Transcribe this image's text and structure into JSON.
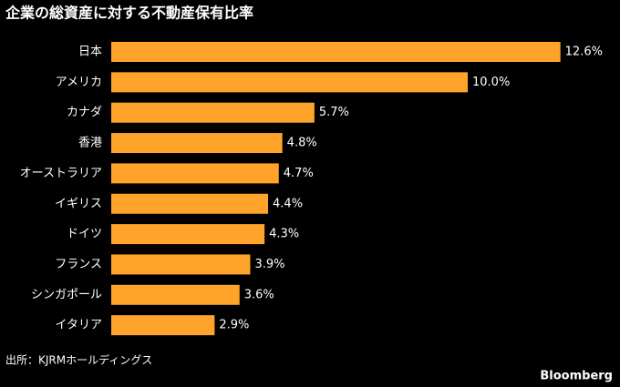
{
  "chart_data": {
    "type": "hbar",
    "title": "企業の総資産に対する不動産保有比率",
    "categories": [
      "日本",
      "アメリカ",
      "カナダ",
      "香港",
      "オーストラリア",
      "イギリス",
      "ドイツ",
      "フランス",
      "シンガポール",
      "イタリア"
    ],
    "values": [
      12.6,
      10.0,
      5.7,
      4.8,
      4.7,
      4.4,
      4.3,
      3.9,
      3.6,
      2.9
    ],
    "value_labels": [
      "12.6%",
      "10.0%",
      "5.7%",
      "4.8%",
      "4.7%",
      "4.4%",
      "4.3%",
      "3.9%",
      "3.6%",
      "2.9%"
    ],
    "color": "#ffa32b",
    "source": "出所：KJRMホールディングス",
    "credit": "Bloomberg"
  }
}
